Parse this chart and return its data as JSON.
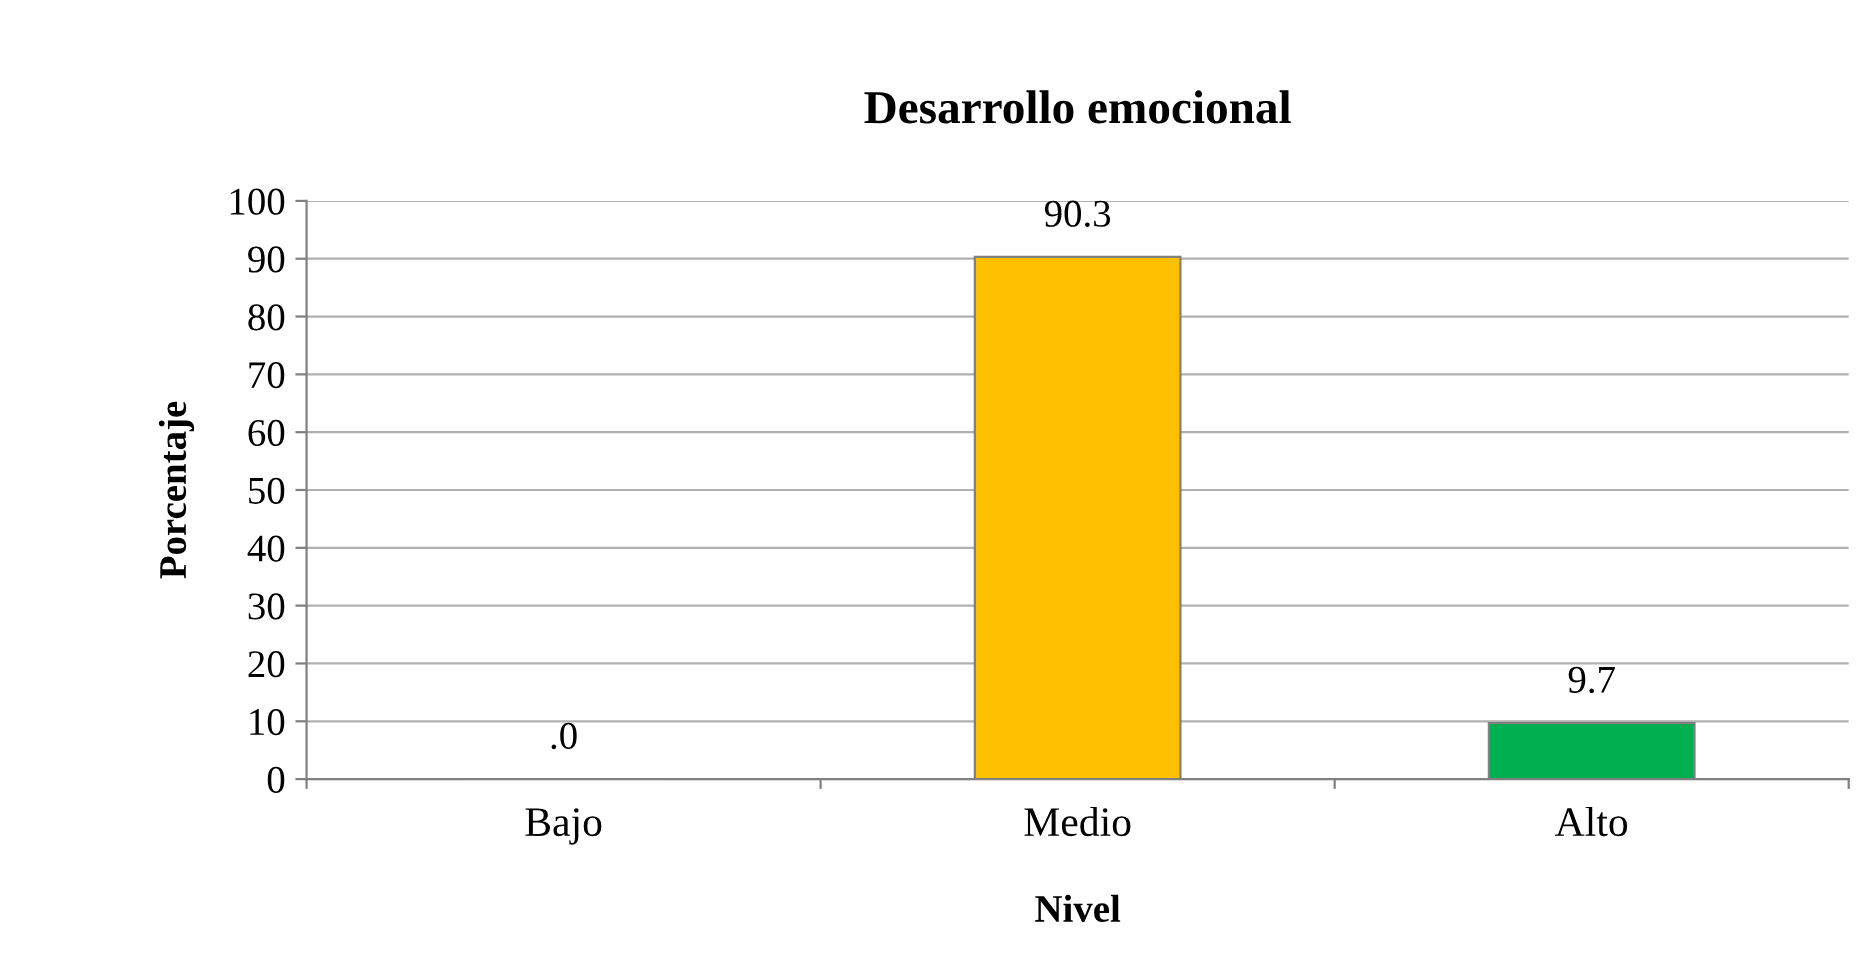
{
  "chart_data": {
    "type": "bar",
    "title": "Desarrollo emocional",
    "xlabel": "Nivel",
    "ylabel": "Porcentaje",
    "categories": [
      "Bajo",
      "Medio",
      "Alto"
    ],
    "values": [
      0,
      90.3,
      9.7
    ],
    "colors": [
      "#7f7f7f",
      "#ffc000",
      "#00b050"
    ],
    "value_labels": [
      ".0",
      "90.3",
      "9.7"
    ],
    "ylim": [
      0,
      100
    ],
    "yticks": [
      0,
      10,
      20,
      30,
      40,
      50,
      60,
      70,
      80,
      90,
      100
    ],
    "grid": "y"
  }
}
